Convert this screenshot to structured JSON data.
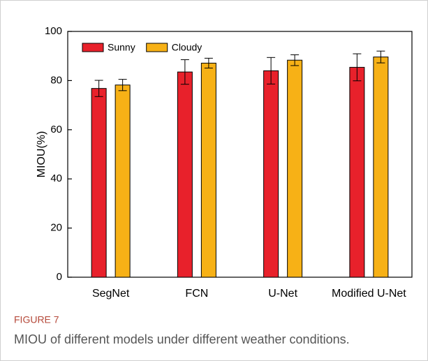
{
  "chart_data": {
    "type": "bar",
    "ylabel": "MIOU(%)",
    "categories": [
      "SegNet",
      "FCN",
      "U-Net",
      "Modified U-Net"
    ],
    "series": [
      {
        "name": "Sunny",
        "color": "#e8212b",
        "values": [
          76.8,
          83.5,
          84.0,
          85.4
        ],
        "errors": [
          3.3,
          5.0,
          5.4,
          5.5
        ]
      },
      {
        "name": "Cloudy",
        "color": "#f7b116",
        "values": [
          78.2,
          87.1,
          88.3,
          89.6
        ],
        "errors": [
          2.3,
          2.0,
          2.2,
          2.4
        ]
      }
    ],
    "ylim": [
      0,
      100
    ],
    "yticks": [
      0,
      20,
      40,
      60,
      80,
      100
    ],
    "legend": "upper-left"
  },
  "caption": {
    "label": "FIGURE 7",
    "text": "MIOU of different models under different weather conditions."
  }
}
